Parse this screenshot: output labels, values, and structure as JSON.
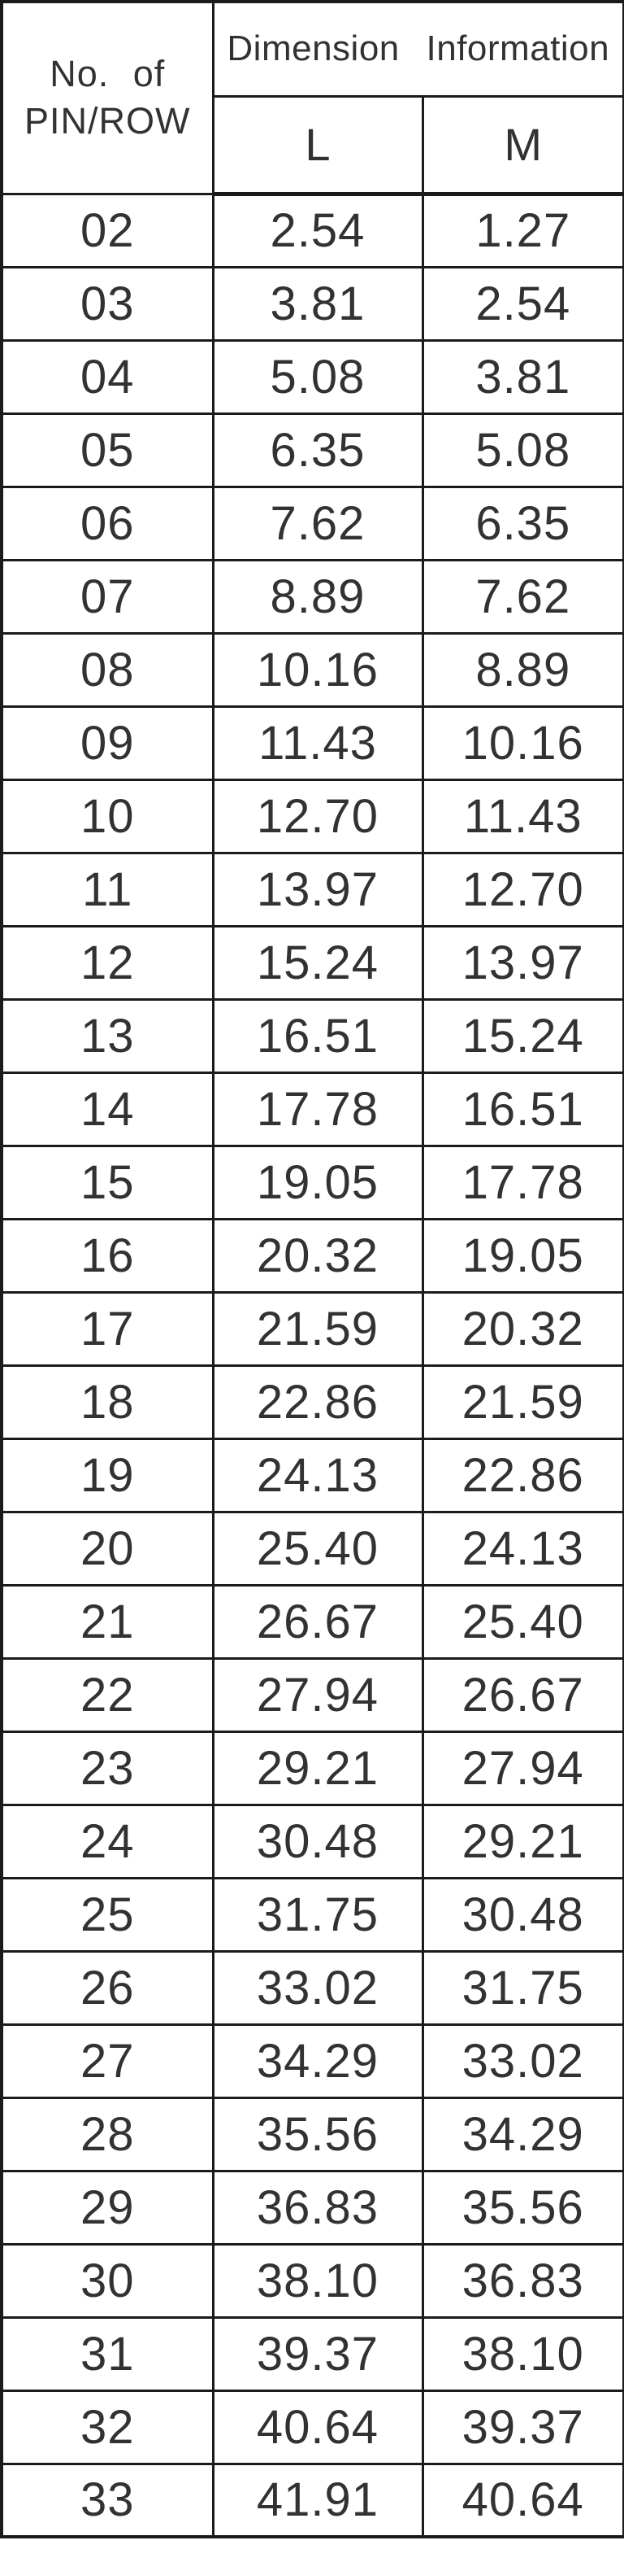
{
  "table": {
    "header": {
      "pin_line1": "No. of",
      "pin_line2": "PIN/ROW",
      "dimension_info": "Dimension Information",
      "col_l": "L",
      "col_m": "M"
    },
    "rows": [
      {
        "pin": "02",
        "l": "2.54",
        "m": "1.27"
      },
      {
        "pin": "03",
        "l": "3.81",
        "m": "2.54"
      },
      {
        "pin": "04",
        "l": "5.08",
        "m": "3.81"
      },
      {
        "pin": "05",
        "l": "6.35",
        "m": "5.08"
      },
      {
        "pin": "06",
        "l": "7.62",
        "m": "6.35"
      },
      {
        "pin": "07",
        "l": "8.89",
        "m": "7.62"
      },
      {
        "pin": "08",
        "l": "10.16",
        "m": "8.89"
      },
      {
        "pin": "09",
        "l": "11.43",
        "m": "10.16"
      },
      {
        "pin": "10",
        "l": "12.70",
        "m": "11.43"
      },
      {
        "pin": "11",
        "l": "13.97",
        "m": "12.70"
      },
      {
        "pin": "12",
        "l": "15.24",
        "m": "13.97"
      },
      {
        "pin": "13",
        "l": "16.51",
        "m": "15.24"
      },
      {
        "pin": "14",
        "l": "17.78",
        "m": "16.51"
      },
      {
        "pin": "15",
        "l": "19.05",
        "m": "17.78"
      },
      {
        "pin": "16",
        "l": "20.32",
        "m": "19.05"
      },
      {
        "pin": "17",
        "l": "21.59",
        "m": "20.32"
      },
      {
        "pin": "18",
        "l": "22.86",
        "m": "21.59"
      },
      {
        "pin": "19",
        "l": "24.13",
        "m": "22.86"
      },
      {
        "pin": "20",
        "l": "25.40",
        "m": "24.13"
      },
      {
        "pin": "21",
        "l": "26.67",
        "m": "25.40"
      },
      {
        "pin": "22",
        "l": "27.94",
        "m": "26.67"
      },
      {
        "pin": "23",
        "l": "29.21",
        "m": "27.94"
      },
      {
        "pin": "24",
        "l": "30.48",
        "m": "29.21"
      },
      {
        "pin": "25",
        "l": "31.75",
        "m": "30.48"
      },
      {
        "pin": "26",
        "l": "33.02",
        "m": "31.75"
      },
      {
        "pin": "27",
        "l": "34.29",
        "m": "33.02"
      },
      {
        "pin": "28",
        "l": "35.56",
        "m": "34.29"
      },
      {
        "pin": "29",
        "l": "36.83",
        "m": "35.56"
      },
      {
        "pin": "30",
        "l": "38.10",
        "m": "36.83"
      },
      {
        "pin": "31",
        "l": "39.37",
        "m": "38.10"
      },
      {
        "pin": "32",
        "l": "40.64",
        "m": "39.37"
      },
      {
        "pin": "33",
        "l": "41.91",
        "m": "40.64"
      }
    ]
  },
  "colors": {
    "border": "#1b1b1b",
    "text": "#323232",
    "background": "#ffffff"
  }
}
